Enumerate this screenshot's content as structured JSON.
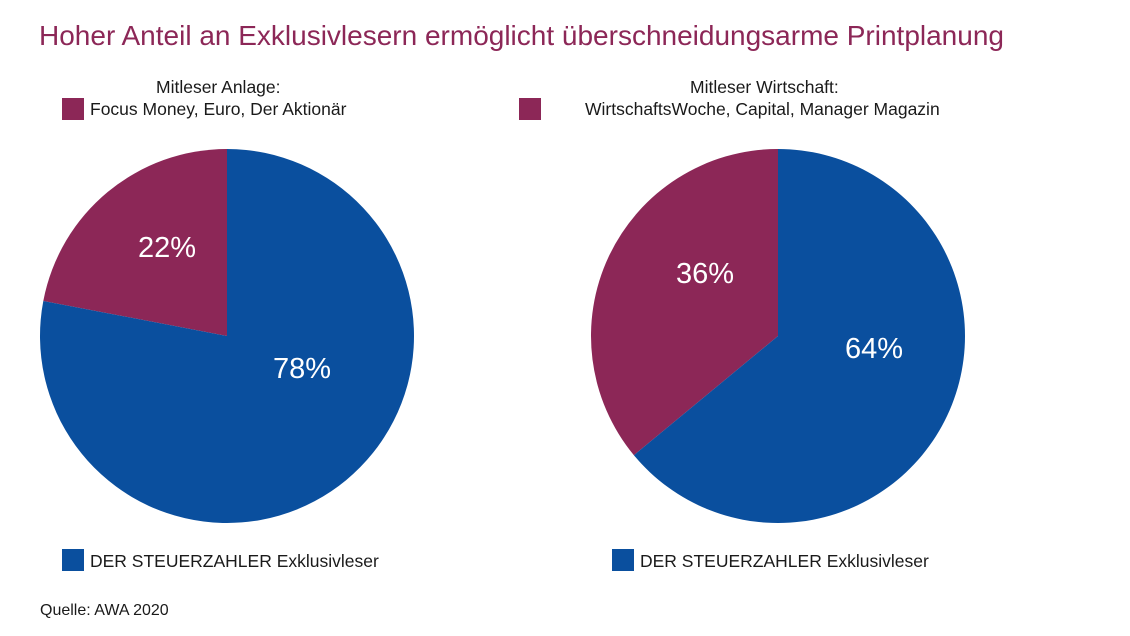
{
  "title": "Hoher Anteil an Exklusivlesern ermöglicht überschneidungsarme Printplanung",
  "source": "Quelle: AWA 2020",
  "colors": {
    "title": "#8c2757",
    "overlap": "#8c2757",
    "exclusive": "#0a4f9e"
  },
  "chart_data": [
    {
      "type": "pie",
      "legend_heading": "Mitleser Anlage:",
      "legend_magazines": "Focus Money, Euro, Der Aktionär",
      "legend_exclusive": "DER STEUERZAHLER Exklusivleser",
      "slices": [
        {
          "label": "22%",
          "value": 22,
          "color": "#8c2757"
        },
        {
          "label": "78%",
          "value": 78,
          "color": "#0a4f9e"
        }
      ]
    },
    {
      "type": "pie",
      "legend_heading": "Mitleser Wirtschaft:",
      "legend_magazines": "WirtschaftsWoche, Capital, Manager Magazin",
      "legend_exclusive": "DER STEUERZAHLER Exklusivleser",
      "slices": [
        {
          "label": "36%",
          "value": 36,
          "color": "#8c2757"
        },
        {
          "label": "64%",
          "value": 64,
          "color": "#0a4f9e"
        }
      ]
    }
  ]
}
